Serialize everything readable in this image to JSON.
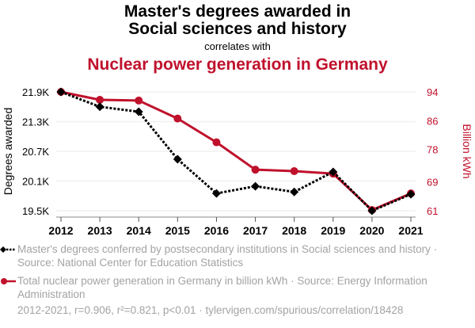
{
  "header": {
    "title_line1": "Master's degrees awarded in",
    "title_line2": "Social sciences and history",
    "correlates": "correlates with",
    "subtitle": "Nuclear power generation in Germany"
  },
  "colors": {
    "series1": "#000000",
    "series2": "#c0112c",
    "grid": "#f0f0f0",
    "legend_text": "#a3a3a3"
  },
  "legend": {
    "series1": "Master's degrees conferred by postsecondary institutions in Social sciences and history · Source: National Center for Education Statistics",
    "series2": "Total nuclear power generation in Germany in billion kWh · Source: Energy Information Administration"
  },
  "footer": "2012-2021, r=0.906, r²=0.821, p<0.01 · tylervigen.com/spurious/correlation/18428",
  "chart_data": {
    "type": "line",
    "title": "Master's degrees awarded in Social sciences and history correlates with Nuclear power generation in Germany",
    "x": [
      2012,
      2013,
      2014,
      2015,
      2016,
      2017,
      2018,
      2019,
      2020,
      2021
    ],
    "xtick_labels": [
      "2012",
      "2013",
      "2014",
      "2015",
      "2016",
      "2017",
      "2018",
      "2019",
      "2020",
      "2021"
    ],
    "ylabel": "Degrees awarded",
    "y2label": "Billion kWh",
    "ylim": [
      19500,
      21900
    ],
    "y2lim": [
      61,
      94
    ],
    "ytick_values": [
      21900,
      21300,
      20700,
      20100,
      19500
    ],
    "ytick_labels": [
      "21.9K",
      "21.3K",
      "20.7K",
      "20.1K",
      "19.5K"
    ],
    "y2tick_values": [
      94,
      86,
      78,
      69,
      61
    ],
    "y2tick_labels": [
      "94",
      "86",
      "78",
      "69",
      "61"
    ],
    "grid": true,
    "series": [
      {
        "name": "Master's degrees conferred by postsecondary institutions in Social sciences and history",
        "axis": "left",
        "style": "dotted-diamond",
        "values": [
          21900,
          21600,
          21500,
          20540,
          19850,
          19995,
          19880,
          20285,
          19500,
          19835
        ]
      },
      {
        "name": "Total nuclear power generation in Germany in billion kWh",
        "axis": "right",
        "style": "solid-circle",
        "values": [
          94.0,
          91.8,
          91.6,
          86.6,
          80.0,
          72.4,
          72.0,
          71.3,
          61.2,
          65.8
        ]
      }
    ]
  }
}
